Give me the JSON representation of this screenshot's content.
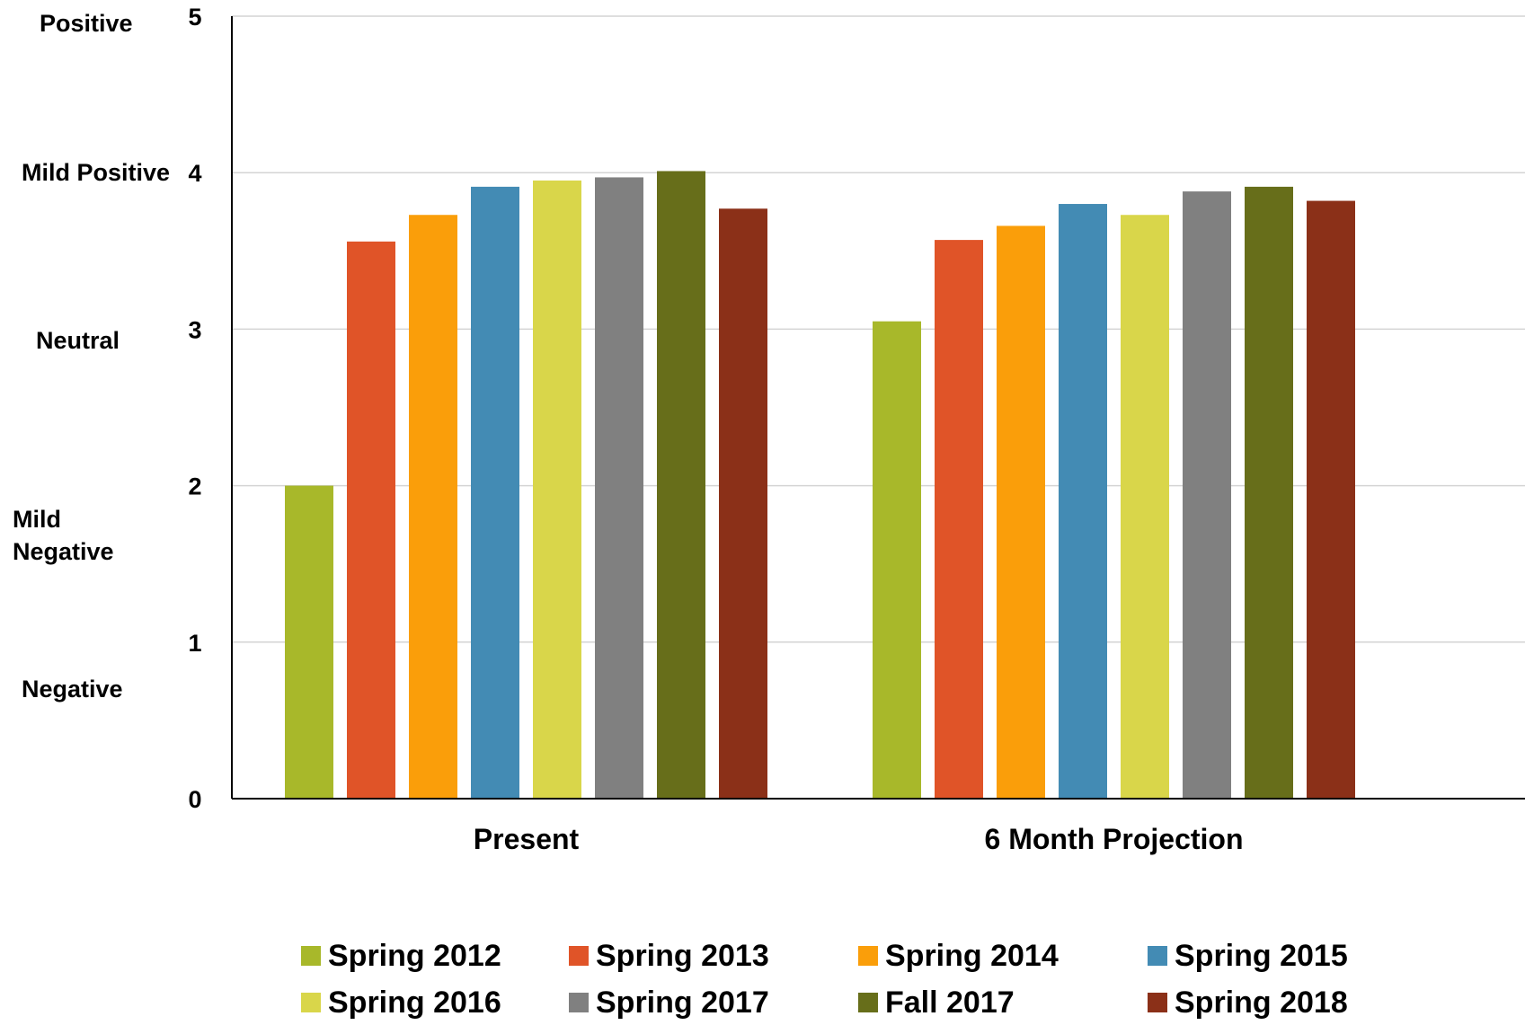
{
  "chart_data": {
    "type": "bar",
    "categories": [
      "Present",
      "6 Month Projection"
    ],
    "ylim": [
      0,
      5
    ],
    "yticks": [
      "0",
      "1",
      "2",
      "3",
      "4",
      "5"
    ],
    "grid": true,
    "legend_position": "bottom",
    "sentiment_labels": [
      {
        "text": "Positive",
        "level": 5
      },
      {
        "text": "Mild Positive",
        "level": 4
      },
      {
        "text": "Neutral",
        "level": 3
      },
      {
        "text": "Mild Negative",
        "level": 2
      },
      {
        "text": "Negative",
        "level": 1
      }
    ],
    "series": [
      {
        "name": "Spring 2012",
        "color": "#a8b82a",
        "values": [
          2.0,
          3.05
        ]
      },
      {
        "name": "Spring 2013",
        "color": "#e05428",
        "values": [
          3.56,
          3.57
        ]
      },
      {
        "name": "Spring 2014",
        "color": "#fa9e0a",
        "values": [
          3.73,
          3.66
        ]
      },
      {
        "name": "Spring 2015",
        "color": "#438bb4",
        "values": [
          3.91,
          3.8
        ]
      },
      {
        "name": "Spring 2016",
        "color": "#d9d64a",
        "values": [
          3.95,
          3.73
        ]
      },
      {
        "name": "Spring 2017",
        "color": "#808080",
        "values": [
          3.97,
          3.88
        ]
      },
      {
        "name": "Fall 2017",
        "color": "#676e1a",
        "values": [
          4.01,
          3.91
        ]
      },
      {
        "name": "Spring 2018",
        "color": "#8b3018",
        "values": [
          3.77,
          3.82
        ]
      }
    ]
  }
}
